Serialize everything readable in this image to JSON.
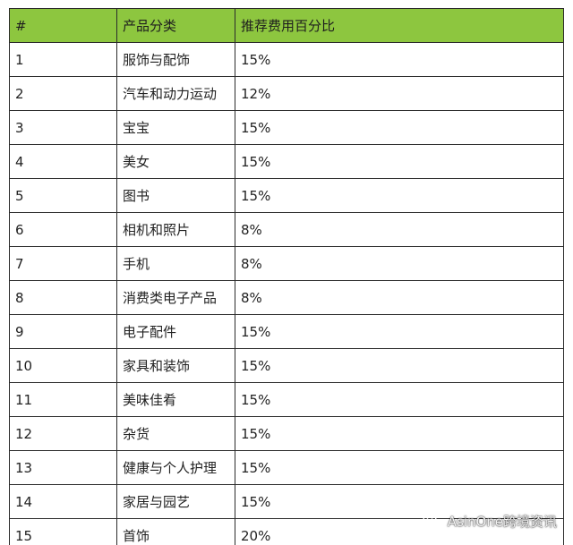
{
  "table": {
    "headers": [
      "#",
      "产品分类",
      "推荐费用百分比"
    ],
    "rows": [
      [
        "1",
        "服饰与配饰",
        "15%"
      ],
      [
        "2",
        "汽车和动力运动",
        "12%"
      ],
      [
        "3",
        "宝宝",
        "15%"
      ],
      [
        "4",
        "美女",
        "15%"
      ],
      [
        "5",
        "图书",
        "15%"
      ],
      [
        "6",
        "相机和照片",
        "8%"
      ],
      [
        "7",
        "手机",
        "8%"
      ],
      [
        "8",
        "消费类电子产品",
        "8%"
      ],
      [
        "9",
        "电子配件",
        "15%"
      ],
      [
        "10",
        "家具和装饰",
        "15%"
      ],
      [
        "11",
        "美味佳肴",
        "15%"
      ],
      [
        "12",
        "杂货",
        "15%"
      ],
      [
        "13",
        "健康与个人护理",
        "15%"
      ],
      [
        "14",
        "家居与园艺",
        "15%"
      ],
      [
        "15",
        "首饰",
        "20%"
      ]
    ]
  },
  "watermark": {
    "text": "AsinOne跨境资讯",
    "icon": "wechat-icon"
  },
  "colors": {
    "header_background": "#8dc63f",
    "border": "#2b2b2b",
    "text": "#222222"
  }
}
